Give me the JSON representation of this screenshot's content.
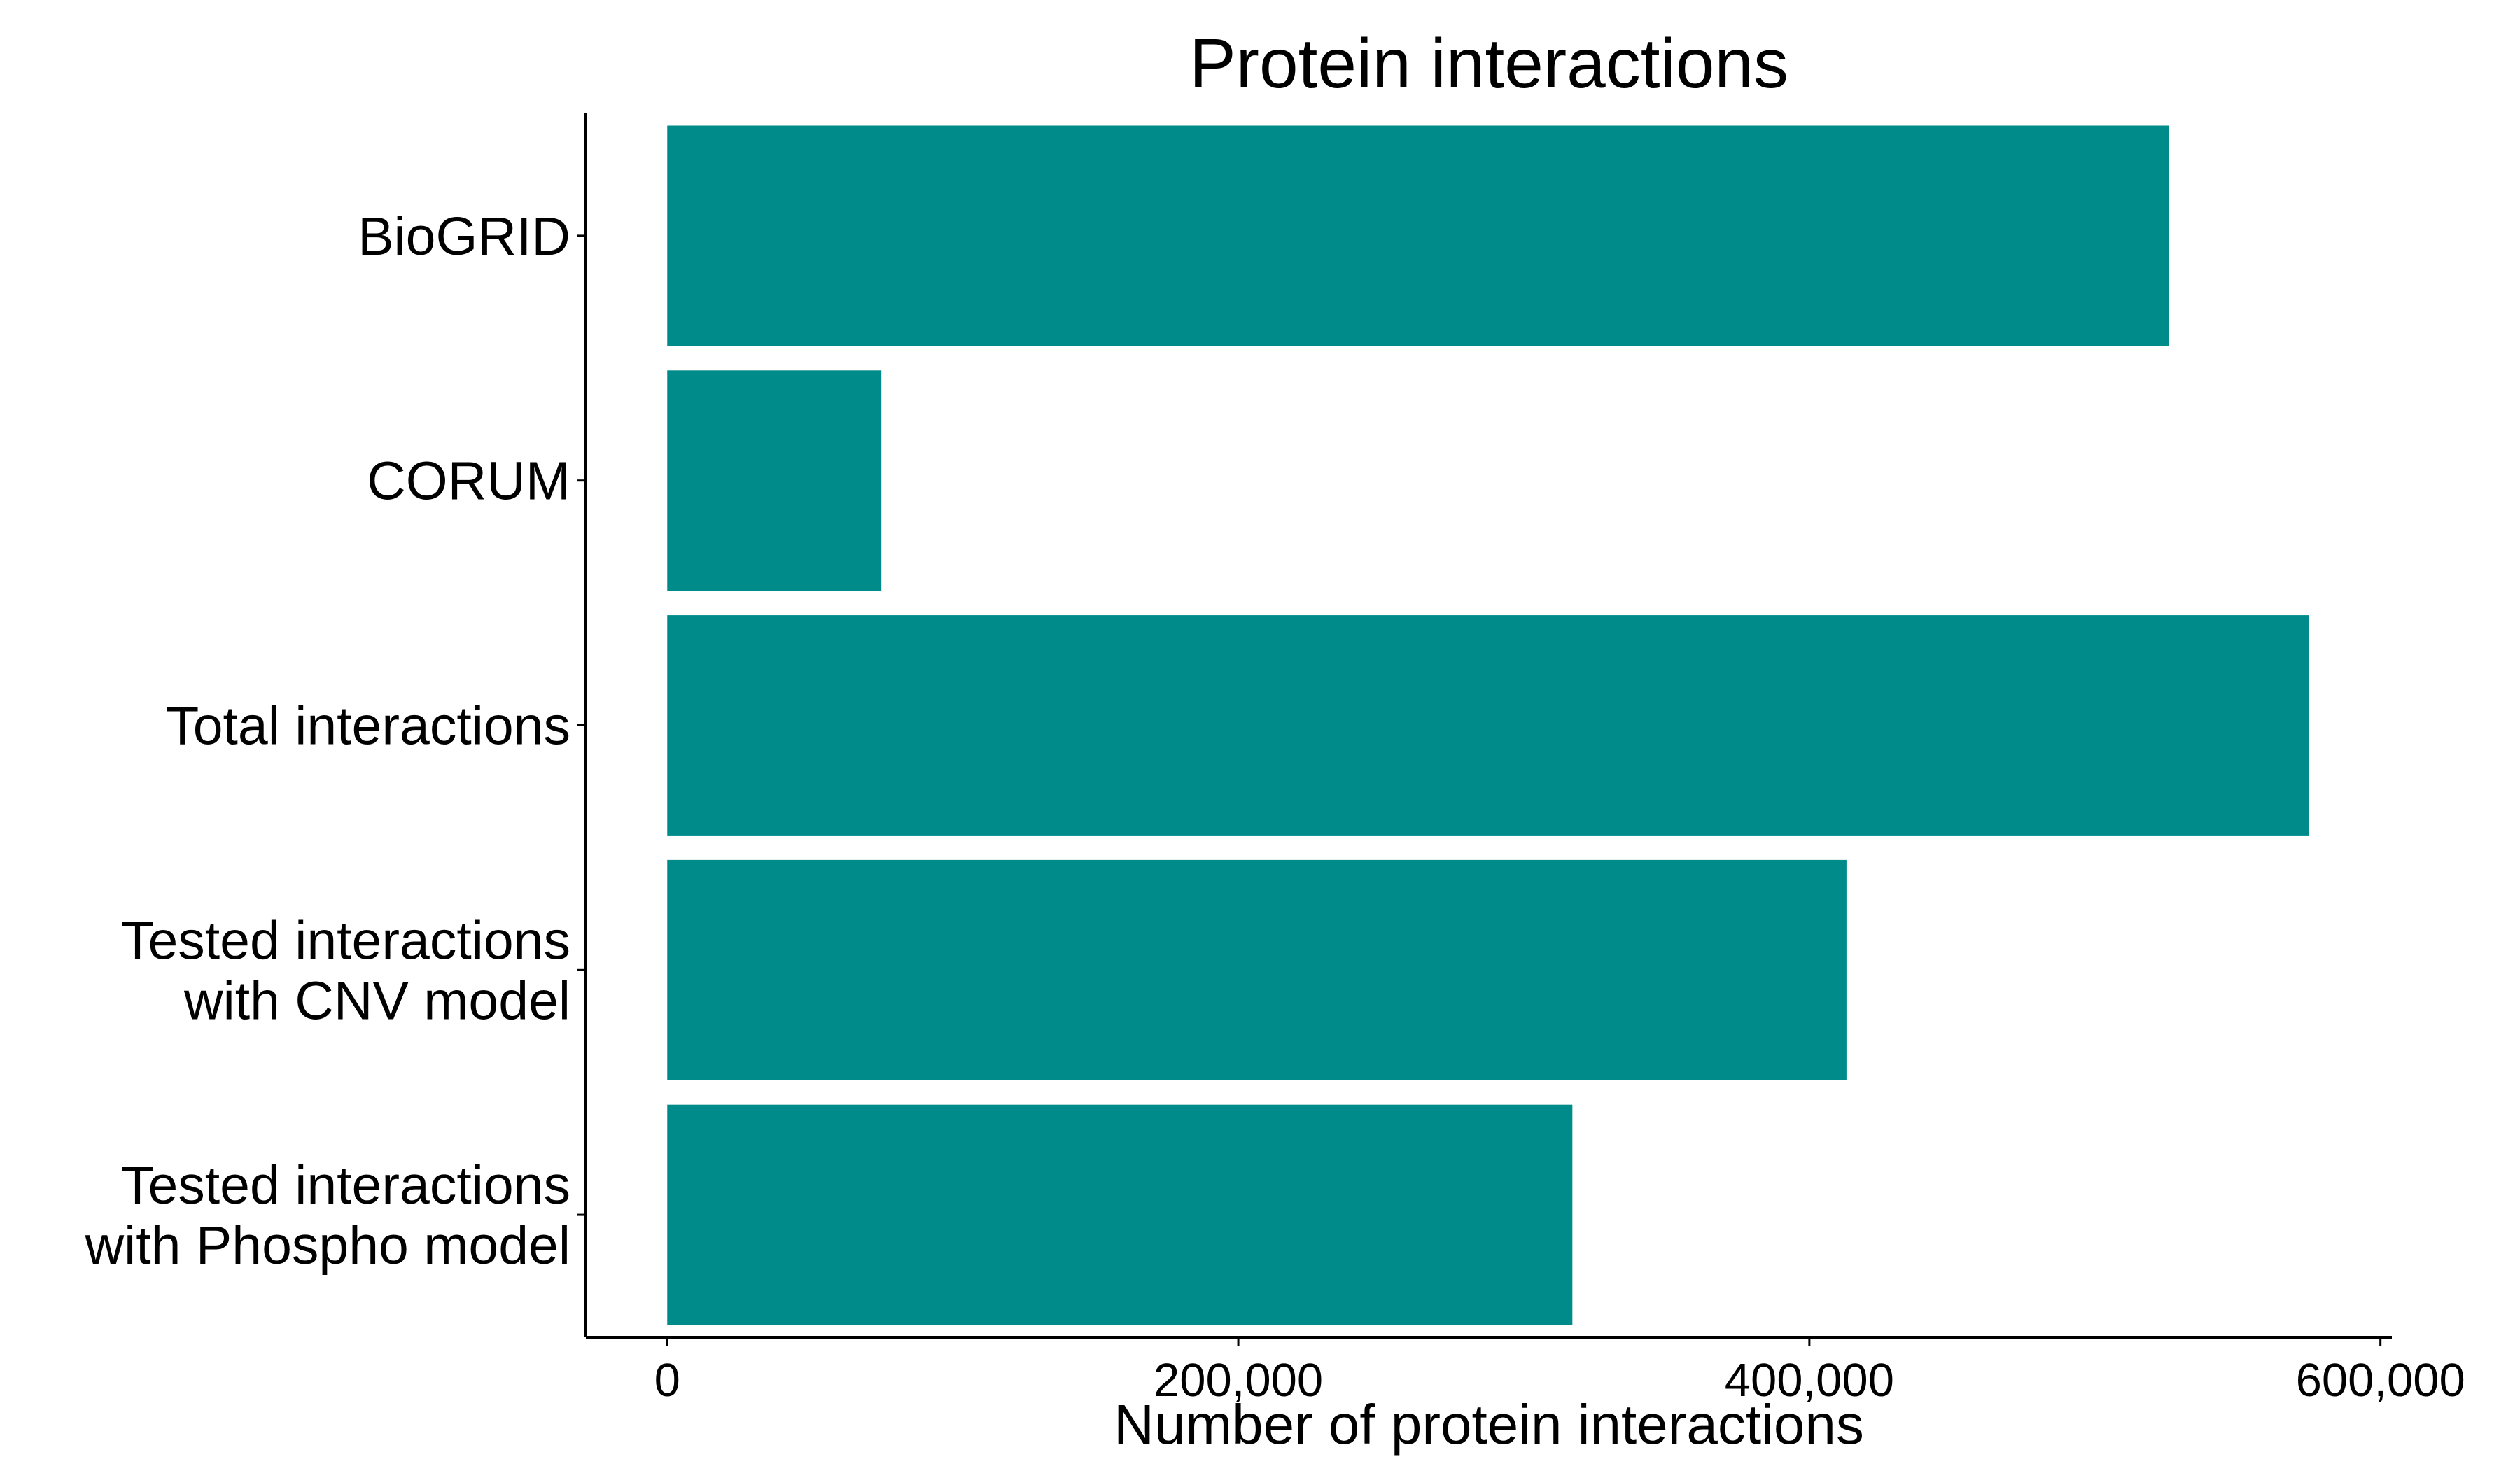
{
  "chart_data": {
    "type": "bar",
    "orientation": "horizontal",
    "title": "Protein interactions",
    "xlabel": "Number of protein interactions",
    "ylabel": "",
    "categories": [
      "BioGRID",
      "CORUM",
      "Total interactions",
      "Tested interactions\nwith CNV model",
      "Tested interactions\nwith Phospho model"
    ],
    "values": [
      526000,
      75000,
      575000,
      413000,
      317000
    ],
    "xlim": [
      -28500,
      604000
    ],
    "x_ticks": [
      0,
      200000,
      400000,
      600000
    ],
    "x_tick_labels": [
      "0",
      "200,000",
      "400,000",
      "600,000"
    ],
    "bar_color": "#008B8B",
    "grid": false,
    "legend": "none"
  }
}
